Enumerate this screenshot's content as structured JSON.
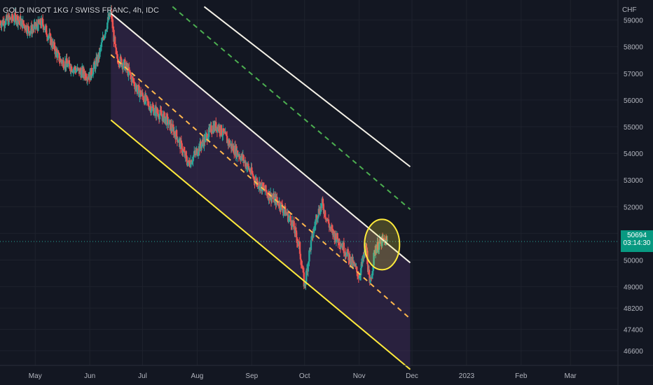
{
  "window": {
    "symbol_title": "GOLD INGOT 1KG / SWISS FRANC, 4h, IDC",
    "currency": "CHF"
  },
  "price_badge": {
    "price": "50694",
    "countdown": "03:14:30"
  },
  "colors": {
    "background": "#131722",
    "grid": "#1e222d",
    "up": "#26a69a",
    "down": "#ef5350",
    "channel_fill": "#3d2a55",
    "upper_line": "#f5f2e8",
    "lower_line": "#ffeb3b",
    "mid_dashed": "#ffb74d",
    "upper_dashed": "#4caf50",
    "circle": "#ffeb3b",
    "badge": "#089981"
  },
  "chart_data": {
    "type": "candlestick",
    "title": "GOLD INGOT 1KG / SWISS FRANC, 4h, IDC",
    "ylabel": "CHF",
    "x_ticks": [
      "May",
      "Jun",
      "Jul",
      "Aug",
      "Sep",
      "Oct",
      "Nov",
      "Dec",
      "2023",
      "Feb",
      "Mar"
    ],
    "x_tick_dates": [
      "2022-05-01",
      "2022-06-01",
      "2022-07-01",
      "2022-08-01",
      "2022-09-01",
      "2022-10-01",
      "2022-11-01",
      "2022-12-01",
      "2023-01-01",
      "2023-02-01",
      "2023-03-01"
    ],
    "xlim": [
      "2022-04-11",
      "2023-03-28"
    ],
    "y_ticks": [
      59000,
      58000,
      57000,
      56000,
      55000,
      54000,
      53000,
      52000,
      51000,
      50000,
      49000,
      48200,
      47400,
      46600
    ],
    "ylim": [
      46050,
      59750
    ],
    "last_price": 50694,
    "price_path": [
      [
        "2022-04-11",
        58900
      ],
      [
        "2022-04-20",
        59100
      ],
      [
        "2022-04-28",
        58600
      ],
      [
        "2022-05-05",
        58900
      ],
      [
        "2022-05-15",
        57500
      ],
      [
        "2022-05-25",
        57100
      ],
      [
        "2022-06-01",
        56900
      ],
      [
        "2022-06-06",
        57600
      ],
      [
        "2022-06-10",
        58700
      ],
      [
        "2022-06-13",
        59300
      ],
      [
        "2022-06-16",
        57600
      ],
      [
        "2022-06-21",
        57300
      ],
      [
        "2022-06-28",
        56400
      ],
      [
        "2022-07-06",
        55700
      ],
      [
        "2022-07-14",
        55300
      ],
      [
        "2022-07-20",
        54700
      ],
      [
        "2022-07-27",
        53600
      ],
      [
        "2022-08-03",
        54300
      ],
      [
        "2022-08-10",
        55000
      ],
      [
        "2022-08-13",
        55000
      ],
      [
        "2022-08-20",
        54300
      ],
      [
        "2022-08-27",
        53800
      ],
      [
        "2022-09-03",
        53000
      ],
      [
        "2022-09-10",
        52500
      ],
      [
        "2022-09-17",
        52100
      ],
      [
        "2022-09-24",
        51400
      ],
      [
        "2022-09-28",
        50500
      ],
      [
        "2022-10-01",
        49000
      ],
      [
        "2022-10-04",
        50400
      ],
      [
        "2022-10-08",
        51700
      ],
      [
        "2022-10-11",
        52100
      ],
      [
        "2022-10-16",
        51100
      ],
      [
        "2022-10-22",
        50600
      ],
      [
        "2022-10-28",
        49900
      ],
      [
        "2022-11-01",
        49400
      ],
      [
        "2022-11-05",
        50500
      ],
      [
        "2022-11-07",
        49000
      ],
      [
        "2022-11-10",
        50400
      ],
      [
        "2022-11-14",
        50700
      ],
      [
        "2022-11-17",
        50694
      ]
    ],
    "channel": {
      "start": "2022-06-13",
      "end": "2022-11-30",
      "upper": [
        59250,
        49900
      ],
      "mid": [
        57700,
        47800
      ],
      "lower": [
        55250,
        45900
      ]
    },
    "upper_dashed_line": {
      "start": "2022-07-18",
      "end": "2022-11-30",
      "values": [
        59500,
        51900
      ]
    },
    "upper_solid_line": {
      "start": "2022-08-05",
      "end": "2022-11-30",
      "values": [
        59500,
        53500
      ]
    },
    "highlight_circle": {
      "center_date": "2022-11-14",
      "center_value": 50580
    },
    "grid": true
  }
}
